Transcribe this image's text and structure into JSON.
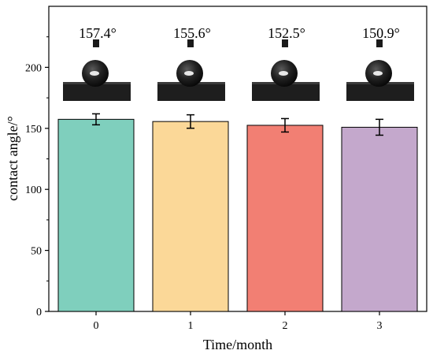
{
  "chart_data": {
    "type": "bar",
    "categories": [
      "0",
      "1",
      "2",
      "3"
    ],
    "values": [
      157.4,
      155.6,
      152.5,
      150.9
    ],
    "errors": [
      4.5,
      5.5,
      5.5,
      6.5
    ],
    "data_labels": [
      "157.4°",
      "155.6°",
      "152.5°",
      "150.9°"
    ],
    "colors": [
      "#7fcfbd",
      "#fbd898",
      "#f27f73",
      "#c4a8cc"
    ],
    "xlabel": "Time/month",
    "ylabel": "contact angle/°",
    "ylim": [
      0,
      250
    ],
    "yticks": [
      "0",
      "50",
      "100",
      "150",
      "200"
    ],
    "grid": false,
    "insets": "droplet photographs above each bar"
  }
}
